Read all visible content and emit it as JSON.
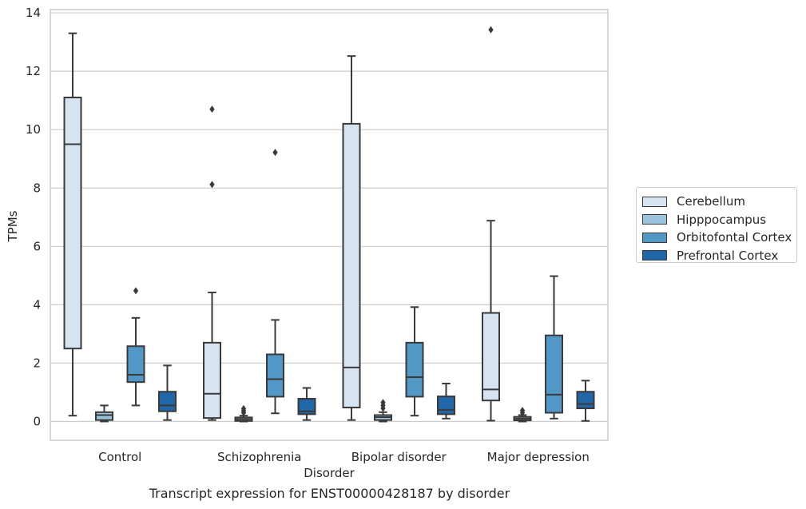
{
  "chart_data": {
    "type": "box",
    "xlabel": "Disorder",
    "ylabel": "TPMs",
    "ylim": [
      -0.65,
      14.15
    ],
    "yticks": [
      0,
      2,
      4,
      6,
      8,
      10,
      12,
      14
    ],
    "grid": true,
    "legend_position": "right",
    "categories": [
      "Control",
      "Schizophrenia",
      "Bipolar disorder",
      "Major depression"
    ],
    "series": [
      {
        "name": "Cerebellum",
        "color": "#d6e4f2",
        "boxes": [
          {
            "whisker_low": 0.2,
            "q1": 2.5,
            "median": 9.5,
            "q3": 11.1,
            "whisker_high": 13.3,
            "outliers": []
          },
          {
            "whisker_low": 0.05,
            "q1": 0.12,
            "median": 0.95,
            "q3": 2.7,
            "whisker_high": 4.42,
            "outliers": [
              8.12,
              10.7
            ]
          },
          {
            "whisker_low": 0.05,
            "q1": 0.48,
            "median": 1.85,
            "q3": 10.2,
            "whisker_high": 12.52,
            "outliers": []
          },
          {
            "whisker_low": 0.03,
            "q1": 0.72,
            "median": 1.1,
            "q3": 3.72,
            "whisker_high": 6.88,
            "outliers": [
              13.42
            ]
          }
        ]
      },
      {
        "name": "Hipppocampus",
        "color": "#9cc3dd",
        "boxes": [
          {
            "whisker_low": 0.0,
            "q1": 0.05,
            "median": 0.22,
            "q3": 0.32,
            "whisker_high": 0.55,
            "outliers": []
          },
          {
            "whisker_low": 0.0,
            "q1": 0.02,
            "median": 0.08,
            "q3": 0.14,
            "whisker_high": 0.2,
            "outliers": [
              0.3,
              0.37,
              0.44
            ]
          },
          {
            "whisker_low": 0.0,
            "q1": 0.05,
            "median": 0.15,
            "q3": 0.22,
            "whisker_high": 0.32,
            "outliers": [
              0.45,
              0.55,
              0.65
            ]
          },
          {
            "whisker_low": 0.0,
            "q1": 0.04,
            "median": 0.1,
            "q3": 0.16,
            "whisker_high": 0.22,
            "outliers": [
              0.3,
              0.38
            ]
          }
        ]
      },
      {
        "name": "Orbitofontal Cortex",
        "color": "#5198c6",
        "boxes": [
          {
            "whisker_low": 0.55,
            "q1": 1.35,
            "median": 1.6,
            "q3": 2.58,
            "whisker_high": 3.55,
            "outliers": [
              4.48
            ]
          },
          {
            "whisker_low": 0.28,
            "q1": 0.85,
            "median": 1.45,
            "q3": 2.3,
            "whisker_high": 3.48,
            "outliers": [
              9.22
            ]
          },
          {
            "whisker_low": 0.2,
            "q1": 0.85,
            "median": 1.52,
            "q3": 2.7,
            "whisker_high": 3.92,
            "outliers": []
          },
          {
            "whisker_low": 0.1,
            "q1": 0.3,
            "median": 0.92,
            "q3": 2.95,
            "whisker_high": 4.98,
            "outliers": []
          }
        ]
      },
      {
        "name": "Prefrontal Cortex",
        "color": "#2167a8",
        "boxes": [
          {
            "whisker_low": 0.05,
            "q1": 0.35,
            "median": 0.55,
            "q3": 1.02,
            "whisker_high": 1.92,
            "outliers": []
          },
          {
            "whisker_low": 0.05,
            "q1": 0.25,
            "median": 0.35,
            "q3": 0.78,
            "whisker_high": 1.15,
            "outliers": []
          },
          {
            "whisker_low": 0.1,
            "q1": 0.25,
            "median": 0.4,
            "q3": 0.86,
            "whisker_high": 1.3,
            "outliers": []
          },
          {
            "whisker_low": 0.02,
            "q1": 0.45,
            "median": 0.6,
            "q3": 1.02,
            "whisker_high": 1.4,
            "outliers": []
          }
        ]
      }
    ]
  },
  "caption": "Transcript expression for ENST00000428187 by disorder"
}
